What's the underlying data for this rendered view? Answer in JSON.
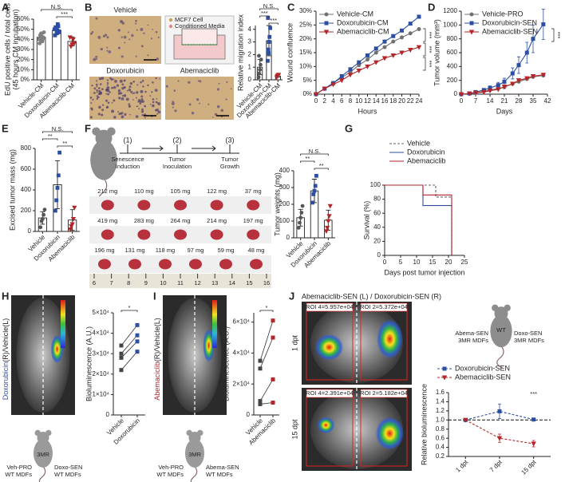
{
  "chart_data": [
    {
      "panel": "A",
      "type": "bar",
      "ylabel": [
        "EdU positive cells / total cells",
        "(45 hours CM incubation)"
      ],
      "categories": [
        "Vehicle-CM",
        "Doxorubicin-CM",
        "Abemaciclib-CM"
      ],
      "values": [
        42,
        49,
        38
      ],
      "errors": [
        3.5,
        4,
        4.5
      ],
      "points": [
        [
          40,
          44,
          46,
          38,
          42,
          36,
          45,
          43,
          40,
          47
        ],
        [
          50,
          52,
          46,
          55,
          48,
          44,
          51,
          49,
          53,
          47
        ],
        [
          42,
          33,
          35,
          40,
          36
        ]
      ],
      "bar_color": "#ffffff",
      "colors": [
        "#7f7f7f",
        "#2d4fa2",
        "#b3262a"
      ],
      "ylim": [
        0,
        60
      ],
      "yticks": [
        {
          "value": 0,
          "label": "0%"
        },
        {
          "value": 10,
          "label": "10%"
        },
        {
          "value": 20,
          "label": "20%"
        },
        {
          "value": 30,
          "label": "30%"
        },
        {
          "value": 40,
          "label": "40%"
        },
        {
          "value": 50,
          "label": "50%"
        },
        {
          "value": 60,
          "label": "60%"
        }
      ],
      "significance": [
        {
          "label": "N.S.",
          "pair": [
            0,
            2
          ]
        },
        {
          "label": "***",
          "pair": [
            1,
            2
          ]
        }
      ]
    },
    {
      "panel": "B",
      "type": "bar",
      "ylabel": "Relative migration index",
      "categories": [
        "Vehicle-CM",
        "Doxorubicin-CM",
        "Abemaciclib-CM"
      ],
      "values": [
        1.0,
        3.1,
        0.3
      ],
      "errors": [
        0.6,
        1.2,
        0.1
      ],
      "points": [
        [
          0.2,
          0.5,
          0.8,
          1.2,
          1.6,
          1.9
        ],
        [
          1.5,
          2.4,
          3.0,
          3.4,
          4.1,
          4.9,
          2.1
        ],
        [
          0.2,
          0.3,
          0.35,
          0.4
        ]
      ],
      "bar_color": "#ffffff",
      "colors": [
        "#555555",
        "#2d4fa2",
        "#b3262a"
      ],
      "ylim": [
        0,
        4.3
      ],
      "yticks": [
        0,
        1,
        2,
        3,
        4
      ],
      "significance": [
        {
          "label": "N.S.",
          "pair": [
            0,
            2
          ]
        },
        {
          "label": "***",
          "pair": [
            0,
            1
          ]
        },
        {
          "label": "***",
          "pair": [
            1,
            2
          ]
        }
      ]
    },
    {
      "panel": "C",
      "type": "line",
      "ylabel": "Wound confluence",
      "xlabel": "Hours",
      "legend": "upper left",
      "x": [
        0,
        2,
        4,
        6,
        8,
        10,
        12,
        14,
        16,
        18,
        20,
        22,
        24
      ],
      "series": [
        {
          "name": "Vehicle-CM",
          "color": "#707070",
          "marker": "circle",
          "values": [
            0,
            2,
            4,
            6,
            8,
            10.5,
            12.5,
            15,
            17,
            19,
            20.5,
            22,
            23.5
          ]
        },
        {
          "name": "Doxorubicin-CM",
          "color": "#2d4fa2",
          "marker": "square",
          "values": [
            0,
            2,
            4,
            6.5,
            9,
            11.5,
            14,
            16.5,
            19,
            21,
            23,
            25.5,
            28
          ]
        },
        {
          "name": "Abemaciclib-CM",
          "color": "#b3262a",
          "marker": "triangle",
          "values": [
            0,
            2,
            3.5,
            5,
            7,
            8.5,
            10,
            11.5,
            13,
            14,
            15,
            16,
            17
          ]
        }
      ],
      "xlim": [
        0,
        24
      ],
      "xticks": [
        0,
        2,
        4,
        6,
        8,
        10,
        12,
        14,
        16,
        18,
        20,
        22,
        24
      ],
      "ylim": [
        0,
        30
      ],
      "yticks": [
        {
          "value": 0,
          "label": "0%"
        },
        {
          "value": 5,
          "label": "5%"
        },
        {
          "value": 10,
          "label": "10%"
        },
        {
          "value": 15,
          "label": "15%"
        },
        {
          "value": 20,
          "label": "20%"
        },
        {
          "value": 25,
          "label": "25%"
        },
        {
          "value": 30,
          "label": "30%"
        }
      ],
      "annotations": [
        "***",
        "***",
        "***"
      ]
    },
    {
      "panel": "D",
      "type": "line",
      "ylabel": "Tumor volume (mm³)",
      "xlabel": "Days",
      "legend": "upper left",
      "x": [
        0,
        4,
        7,
        11,
        14,
        18,
        21,
        25,
        28,
        32,
        35,
        40
      ],
      "series": [
        {
          "name": "Vehicle-PRO",
          "color": "#707070",
          "marker": "circle",
          "values": [
            0,
            10,
            20,
            40,
            60,
            80,
            100,
            150,
            180,
            220,
            250,
            270
          ]
        },
        {
          "name": "Doxorubicin-SEN",
          "color": "#2d4fa2",
          "marker": "square",
          "values": [
            0,
            10,
            30,
            60,
            90,
            130,
            180,
            300,
            420,
            600,
            800,
            1010
          ],
          "errors": [
            0,
            5,
            10,
            20,
            30,
            40,
            50,
            80,
            120,
            150,
            200,
            220
          ]
        },
        {
          "name": "Abemaciclib-SEN",
          "color": "#b3262a",
          "marker": "triangle",
          "values": [
            0,
            10,
            20,
            30,
            50,
            70,
            110,
            150,
            200,
            230,
            260,
            280
          ]
        }
      ],
      "xlim": [
        0,
        42
      ],
      "xticks": [
        0,
        7,
        14,
        21,
        28,
        35,
        42
      ],
      "ylim": [
        0,
        1200
      ],
      "yticks": [
        0,
        200,
        400,
        600,
        800,
        1000,
        1200
      ],
      "annotations": [
        "***"
      ]
    },
    {
      "panel": "E",
      "type": "bar",
      "ylabel": "Excised tumor mass (mg)",
      "categories": [
        "Vehicle",
        "Doxorubicin",
        "Abemaciclib"
      ],
      "values": [
        130,
        450,
        110
      ],
      "errors": [
        60,
        230,
        100
      ],
      "points": [
        [
          40,
          100,
          120,
          160,
          210
        ],
        [
          200,
          300,
          420,
          540,
          760
        ],
        [
          20,
          50,
          70,
          120,
          230
        ]
      ],
      "bar_color": "#ffffff",
      "colors": [
        "#555555",
        "#2d4fa2",
        "#b3262a"
      ],
      "ylim": [
        0,
        800
      ],
      "yticks": [
        0,
        200,
        400,
        600,
        800
      ],
      "significance": [
        {
          "label": "N.S.",
          "pair": [
            0,
            2
          ]
        },
        {
          "label": "**",
          "pair": [
            0,
            1
          ]
        },
        {
          "label": "**",
          "pair": [
            1,
            2
          ]
        }
      ]
    },
    {
      "panel": "F",
      "type": "bar",
      "ylabel": "Tumor weights (mg)",
      "categories": [
        "Vehicle",
        "Doxorubicin",
        "Abemaciclib"
      ],
      "values": [
        120,
        280,
        105
      ],
      "errors": [
        50,
        70,
        60
      ],
      "points": [
        [
          60,
          90,
          120,
          150,
          190
        ],
        [
          210,
          260,
          280,
          310,
          370
        ],
        [
          40,
          60,
          100,
          130,
          190
        ]
      ],
      "bar_color": "#ffffff",
      "colors": [
        "#555555",
        "#2d4fa2",
        "#b3262a"
      ],
      "ylim": [
        0,
        400
      ],
      "yticks": [
        0,
        100,
        200,
        300,
        400
      ],
      "significance": [
        {
          "label": "N.S.",
          "pair": [
            0,
            2
          ]
        },
        {
          "label": "**",
          "pair": [
            0,
            1
          ]
        },
        {
          "label": "**",
          "pair": [
            1,
            2
          ]
        }
      ]
    },
    {
      "panel": "G",
      "type": "line",
      "ylabel": "Survival (%)",
      "xlabel": "Days post tumor injection",
      "legend": "above",
      "series": [
        {
          "name": "Vehicle",
          "color": "#666666",
          "linestyle": "dashed",
          "x": [
            0,
            16,
            16,
            21,
            21
          ],
          "values": [
            100,
            100,
            83,
            83,
            0
          ]
        },
        {
          "name": "Doxorubicin",
          "color": "#2d4fa2",
          "x": [
            0,
            12,
            12,
            21,
            21
          ],
          "values": [
            100,
            100,
            71,
            71,
            0
          ]
        },
        {
          "name": "Abemaciclib",
          "color": "#b3262a",
          "x": [
            0,
            12,
            12,
            21,
            21
          ],
          "values": [
            100,
            100,
            86,
            86,
            0
          ]
        }
      ],
      "xlim": [
        0,
        25
      ],
      "xticks": [
        0,
        5,
        10,
        15,
        20,
        25
      ],
      "ylim": [
        0,
        100
      ],
      "yticks": [
        0,
        20,
        40,
        60,
        80,
        100
      ]
    },
    {
      "panel": "H",
      "type": "paired",
      "ylabel": "Bioluminescence (A.U.)",
      "categories": [
        "Vehicle",
        "Doxorubicin"
      ],
      "values": [
        [
          34000,
          30000,
          28000,
          22000
        ],
        [
          44000,
          39000,
          36000,
          31000
        ]
      ],
      "colors": [
        "#444444",
        "#2d4fa2"
      ],
      "ylim": [
        0,
        50000
      ],
      "yticks": [
        0,
        {
          "value": 10000,
          "label": "1×10⁴"
        },
        {
          "value": 20000,
          "label": "2×10⁴"
        },
        {
          "value": 30000,
          "label": "3×10⁴"
        },
        {
          "value": 40000,
          "label": "4×10⁴"
        },
        {
          "value": 50000,
          "label": "5×10⁴"
        }
      ],
      "significance": [
        {
          "label": "*",
          "pair": [
            0,
            1
          ]
        }
      ]
    },
    {
      "panel": "I",
      "type": "paired",
      "ylabel": "Bioluminescence (A.U.)",
      "categories": [
        "Vehicle",
        "Abemaciclib"
      ],
      "values": [
        [
          35000,
          30000,
          9000,
          7000
        ],
        [
          61000,
          50000,
          23000,
          8000
        ]
      ],
      "colors": [
        "#444444",
        "#b3262a"
      ],
      "ylim": [
        0,
        66000
      ],
      "yticks": [
        0,
        {
          "value": 20000,
          "label": "2×10⁴"
        },
        {
          "value": 40000,
          "label": "4×10⁴"
        },
        {
          "value": 60000,
          "label": "6×10⁴"
        }
      ],
      "significance": [
        {
          "label": "*",
          "pair": [
            0,
            1
          ]
        }
      ]
    },
    {
      "panel": "J",
      "type": "line",
      "ylabel": "Relative bioluminescence",
      "legend": "above",
      "categories": [
        "1 dpt",
        "7 dpt",
        "15 dpt"
      ],
      "series": [
        {
          "name": "Doxorubicin-SEN",
          "color": "#2d4fa2",
          "marker": "square",
          "linestyle": "dashed",
          "values": [
            1.0,
            1.19,
            1.01
          ],
          "errors": [
            0,
            0.16,
            0.02
          ]
        },
        {
          "name": "Abemaciclib-SEN",
          "color": "#b3262a",
          "marker": "triangle",
          "linestyle": "dashed",
          "values": [
            1.0,
            0.6,
            0.48
          ],
          "errors": [
            0,
            0.09,
            0.07
          ]
        }
      ],
      "ylim": [
        0.2,
        1.6
      ],
      "yticks": [
        0.2,
        0.4,
        0.6,
        0.8,
        {
          "value": 1,
          "label": "1.0"
        },
        1.2,
        1.4,
        1.6
      ],
      "reference_line": 1,
      "annotations": [
        "***"
      ]
    }
  ],
  "panels": {
    "B": {
      "images": [
        "Vehicle",
        "Doxorubicin",
        "Abemaciclib"
      ],
      "legend": [
        "MCF7 Cell",
        "Conditioned Media"
      ]
    },
    "F": {
      "steps": [
        {
          "number": "(1)",
          "label": [
            "Senescence",
            "Induction"
          ]
        },
        {
          "number": "(2)",
          "label": [
            "Tumor",
            "Inoculation"
          ]
        },
        {
          "number": "(3)",
          "label": [
            "Tumor",
            "Growth"
          ]
        }
      ],
      "masses": [
        [
          "212 mg",
          "110 mg",
          "105 mg",
          "122 mg",
          "37 mg"
        ],
        [
          "419 mg",
          "283 mg",
          "264 mg",
          "214 mg",
          "197 mg"
        ],
        [
          "196 mg",
          "131 mg",
          "118 mg",
          "97 mg",
          "59 mg",
          "48 mg"
        ]
      ],
      "ruler": [
        6,
        7,
        8,
        9,
        10,
        11,
        12,
        13,
        14,
        15,
        16
      ]
    },
    "H": {
      "image_label": [
        "Doxorubicin",
        "(R)/Vehicle(L)"
      ],
      "mouse": {
        "left": [
          "Veh-PRO",
          "WT MDFs"
        ],
        "right": [
          "Doxo-SEN",
          "WT MDFs"
        ],
        "center": "3MR"
      }
    },
    "I": {
      "image_label": [
        "Abemaciclib",
        "(R)/Vehicle(L)"
      ],
      "mouse": {
        "left": [
          "Veh-PRO",
          "WT MDFs"
        ],
        "right": [
          "Abema-SEN",
          "WT MDFs"
        ],
        "center": "3MR"
      }
    },
    "J": {
      "title": "Abemaciclib-SEN (L) / Doxorubicin-SEN (R)",
      "rows": [
        {
          "label": "1 dpt",
          "rois": [
            "ROI 4=5.957e+04",
            "ROI 2=5.372e+04"
          ]
        },
        {
          "label": "15 dpt",
          "rois": [
            "ROI 4=2.391e+04",
            "ROI 2=5.182e+04"
          ]
        }
      ],
      "mouse": {
        "left": [
          "Abema-SEN",
          "3MR MDFs"
        ],
        "right": [
          "Doxo-SEN",
          "3MR MDFs"
        ],
        "center": "WT"
      }
    }
  }
}
